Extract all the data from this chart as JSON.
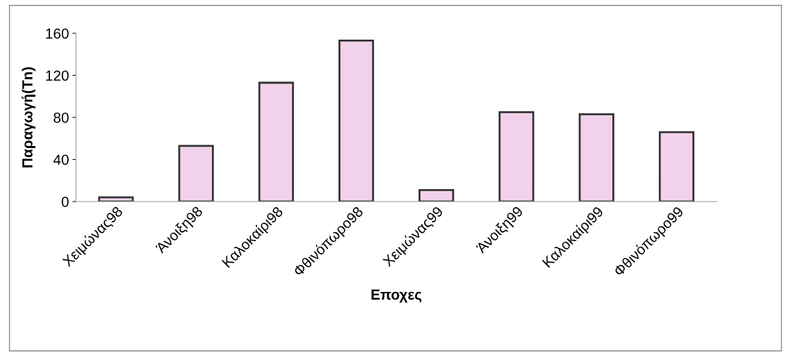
{
  "chart_data": {
    "type": "bar",
    "xlabel": "Εποχες",
    "ylabel": "Παραγωγή(Tn)",
    "categories": [
      "Χειμώνας98",
      "Άνοιξη98",
      "Καλοκαίρι98",
      "Φθινόπωρο98",
      "Χειμώνας99",
      "Άνοιξη99",
      "Καλοκαίρι99",
      "Φθινόπωρο99"
    ],
    "values": [
      4,
      53,
      113,
      153,
      11,
      85,
      83,
      66
    ],
    "color": "#f2d2ea",
    "ylim": [
      0,
      160
    ],
    "yticks": [
      0,
      40,
      80,
      120,
      160
    ],
    "grid": false,
    "legend": false
  }
}
